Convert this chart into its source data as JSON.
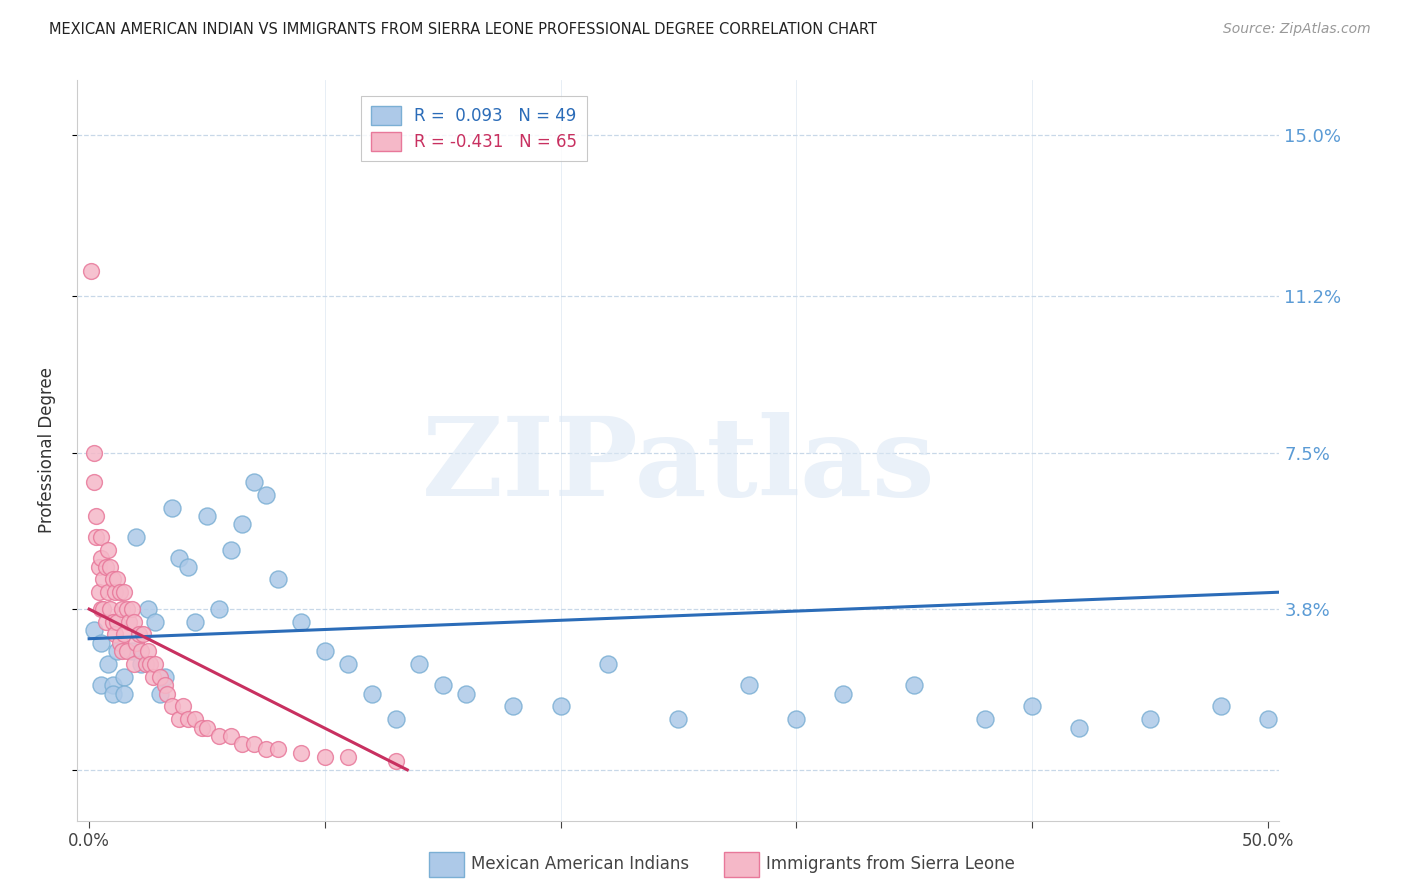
{
  "title": "MEXICAN AMERICAN INDIAN VS IMMIGRANTS FROM SIERRA LEONE PROFESSIONAL DEGREE CORRELATION CHART",
  "source": "Source: ZipAtlas.com",
  "ylabel": "Professional Degree",
  "yticks": [
    0.0,
    0.038,
    0.075,
    0.112,
    0.15
  ],
  "ytick_labels": [
    "",
    "3.8%",
    "7.5%",
    "11.2%",
    "15.0%"
  ],
  "xlim": [
    -0.005,
    0.505
  ],
  "ylim": [
    -0.012,
    0.163
  ],
  "watermark": "ZIPatlas",
  "series1_label": "Mexican American Indians",
  "series1_color": "#adc9e8",
  "series1_edge": "#7bafd4",
  "series2_label": "Immigrants from Sierra Leone",
  "series2_color": "#f5b8c8",
  "series2_edge": "#e8789a",
  "blue_line_color": "#2b6cb8",
  "pink_line_color": "#c83060",
  "legend_R1": "R =  0.093",
  "legend_N1": "N = 49",
  "legend_R2": "R = -0.431",
  "legend_N2": "N = 65",
  "grid_color": "#c8d8e8",
  "background_color": "#ffffff",
  "right_tick_color": "#5b9bd5",
  "blue_scatter_x": [
    0.002,
    0.005,
    0.005,
    0.008,
    0.01,
    0.01,
    0.012,
    0.015,
    0.015,
    0.018,
    0.02,
    0.022,
    0.025,
    0.028,
    0.03,
    0.032,
    0.035,
    0.038,
    0.042,
    0.045,
    0.05,
    0.055,
    0.06,
    0.065,
    0.07,
    0.075,
    0.08,
    0.09,
    0.1,
    0.11,
    0.12,
    0.13,
    0.14,
    0.15,
    0.16,
    0.18,
    0.2,
    0.22,
    0.25,
    0.28,
    0.3,
    0.32,
    0.35,
    0.38,
    0.4,
    0.42,
    0.45,
    0.48,
    0.5
  ],
  "blue_scatter_y": [
    0.033,
    0.03,
    0.02,
    0.025,
    0.02,
    0.018,
    0.028,
    0.022,
    0.018,
    0.028,
    0.055,
    0.025,
    0.038,
    0.035,
    0.018,
    0.022,
    0.062,
    0.05,
    0.048,
    0.035,
    0.06,
    0.038,
    0.052,
    0.058,
    0.068,
    0.065,
    0.045,
    0.035,
    0.028,
    0.025,
    0.018,
    0.012,
    0.025,
    0.02,
    0.018,
    0.015,
    0.015,
    0.025,
    0.012,
    0.02,
    0.012,
    0.018,
    0.02,
    0.012,
    0.015,
    0.01,
    0.012,
    0.015,
    0.012
  ],
  "pink_scatter_x": [
    0.001,
    0.002,
    0.002,
    0.003,
    0.003,
    0.004,
    0.004,
    0.005,
    0.005,
    0.005,
    0.006,
    0.006,
    0.007,
    0.007,
    0.008,
    0.008,
    0.009,
    0.009,
    0.01,
    0.01,
    0.011,
    0.011,
    0.012,
    0.012,
    0.013,
    0.013,
    0.014,
    0.014,
    0.015,
    0.015,
    0.016,
    0.016,
    0.017,
    0.018,
    0.019,
    0.019,
    0.02,
    0.021,
    0.022,
    0.023,
    0.024,
    0.025,
    0.026,
    0.027,
    0.028,
    0.03,
    0.032,
    0.033,
    0.035,
    0.038,
    0.04,
    0.042,
    0.045,
    0.048,
    0.05,
    0.055,
    0.06,
    0.065,
    0.07,
    0.075,
    0.08,
    0.09,
    0.1,
    0.11,
    0.13
  ],
  "pink_scatter_y": [
    0.118,
    0.075,
    0.068,
    0.06,
    0.055,
    0.048,
    0.042,
    0.055,
    0.05,
    0.038,
    0.045,
    0.038,
    0.048,
    0.035,
    0.052,
    0.042,
    0.048,
    0.038,
    0.045,
    0.035,
    0.042,
    0.032,
    0.045,
    0.035,
    0.042,
    0.03,
    0.038,
    0.028,
    0.042,
    0.032,
    0.038,
    0.028,
    0.035,
    0.038,
    0.035,
    0.025,
    0.03,
    0.032,
    0.028,
    0.032,
    0.025,
    0.028,
    0.025,
    0.022,
    0.025,
    0.022,
    0.02,
    0.018,
    0.015,
    0.012,
    0.015,
    0.012,
    0.012,
    0.01,
    0.01,
    0.008,
    0.008,
    0.006,
    0.006,
    0.005,
    0.005,
    0.004,
    0.003,
    0.003,
    0.002
  ],
  "blue_trend_x0": 0.0,
  "blue_trend_x1": 0.505,
  "blue_trend_y0": 0.031,
  "blue_trend_y1": 0.042,
  "pink_trend_x0": 0.0,
  "pink_trend_x1": 0.135,
  "pink_trend_y0": 0.038,
  "pink_trend_y1": 0.0
}
